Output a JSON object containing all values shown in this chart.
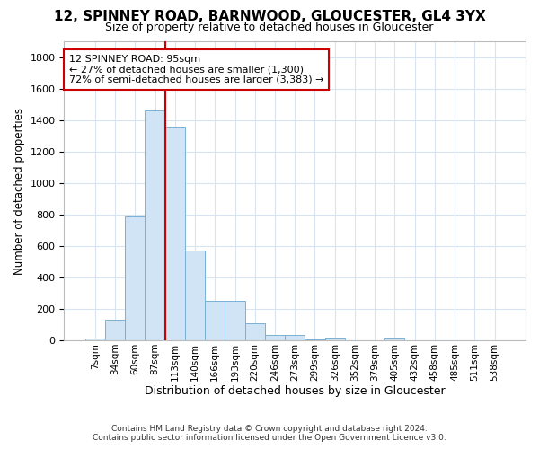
{
  "title": "12, SPINNEY ROAD, BARNWOOD, GLOUCESTER, GL4 3YX",
  "subtitle": "Size of property relative to detached houses in Gloucester",
  "xlabel": "Distribution of detached houses by size in Gloucester",
  "ylabel": "Number of detached properties",
  "footer_line1": "Contains HM Land Registry data © Crown copyright and database right 2024.",
  "footer_line2": "Contains public sector information licensed under the Open Government Licence v3.0.",
  "bar_labels": [
    "7sqm",
    "34sqm",
    "60sqm",
    "87sqm",
    "113sqm",
    "140sqm",
    "166sqm",
    "193sqm",
    "220sqm",
    "246sqm",
    "273sqm",
    "299sqm",
    "326sqm",
    "352sqm",
    "379sqm",
    "405sqm",
    "432sqm",
    "458sqm",
    "485sqm",
    "511sqm",
    "538sqm"
  ],
  "bar_values": [
    10,
    130,
    790,
    1460,
    1360,
    570,
    250,
    250,
    110,
    35,
    35,
    5,
    20,
    0,
    0,
    20,
    0,
    0,
    0,
    0,
    0
  ],
  "bar_color": "#d0e4f5",
  "bar_edge_color": "#7ab0d4",
  "ylim": [
    0,
    1900
  ],
  "yticks": [
    0,
    200,
    400,
    600,
    800,
    1000,
    1200,
    1400,
    1600,
    1800
  ],
  "vline_x": 3.5,
  "annotation_title": "12 SPINNEY ROAD: 95sqm",
  "annotation_line1": "← 27% of detached houses are smaller (1,300)",
  "annotation_line2": "72% of semi-detached houses are larger (3,383) →",
  "vline_color": "#cc0000",
  "annotation_edge_color": "#cc0000",
  "bg_color": "#ffffff",
  "grid_color": "#d8e4f0"
}
